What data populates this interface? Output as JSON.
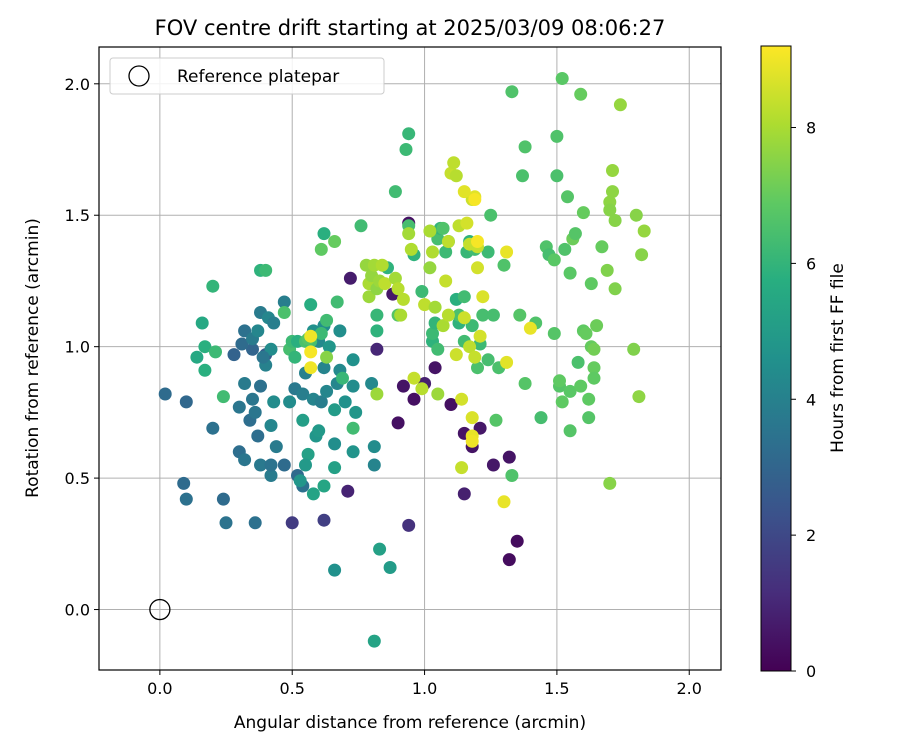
{
  "chart_data": {
    "type": "scatter",
    "title": "FOV centre drift starting at 2025/03/09 08:06:27",
    "xlabel": "Angular distance from reference (arcmin)",
    "ylabel": "Rotation from reference (arcmin)",
    "xlim": [
      -0.23,
      2.12
    ],
    "ylim": [
      -0.23,
      2.14
    ],
    "xticks": [
      0.0,
      0.5,
      1.0,
      1.5,
      2.0
    ],
    "yticks": [
      0.0,
      0.5,
      1.0,
      1.5,
      2.0
    ],
    "xtick_labels": [
      "0.0",
      "0.5",
      "1.0",
      "1.5",
      "2.0"
    ],
    "ytick_labels": [
      "0.0",
      "0.5",
      "1.0",
      "1.5",
      "2.0"
    ],
    "grid": true,
    "colormap": "viridis",
    "colorbar": {
      "label": "Hours from first FF file",
      "range": [
        0,
        9.2
      ],
      "ticks": [
        0,
        2,
        4,
        6,
        8
      ],
      "tick_labels": [
        "0",
        "2",
        "4",
        "6",
        "8"
      ]
    },
    "legend": {
      "position": "upper-left",
      "entries": [
        "Reference platepar"
      ]
    },
    "reference_point": {
      "x": 0.0,
      "y": 0.0
    },
    "points": [
      [
        0.88,
        1.2,
        0.6
      ],
      [
        0.94,
        1.47,
        0.4
      ],
      [
        1.04,
        0.92,
        0.5
      ],
      [
        0.92,
        0.85,
        0.5
      ],
      [
        0.96,
        0.8,
        0.4
      ],
      [
        0.9,
        0.71,
        0.4
      ],
      [
        1.1,
        0.78,
        0.4
      ],
      [
        1.15,
        0.67,
        0.5
      ],
      [
        1.18,
        0.62,
        0.5
      ],
      [
        1.26,
        0.55,
        0.6
      ],
      [
        1.21,
        0.69,
        0.6
      ],
      [
        1.32,
        0.58,
        0.5
      ],
      [
        1.32,
        0.19,
        0.3
      ],
      [
        1.35,
        0.26,
        0.3
      ],
      [
        1.15,
        0.44,
        0.8
      ],
      [
        0.72,
        1.26,
        0.7
      ],
      [
        0.71,
        0.45,
        0.9
      ],
      [
        0.82,
        0.99,
        1.0
      ],
      [
        1.0,
        0.86,
        0.8
      ],
      [
        0.94,
        0.32,
        1.3
      ],
      [
        0.5,
        0.33,
        1.6
      ],
      [
        0.62,
        0.34,
        1.7
      ],
      [
        0.4,
        0.97,
        2.7
      ],
      [
        0.28,
        0.97,
        2.9
      ],
      [
        0.35,
        0.99,
        3.0
      ],
      [
        0.02,
        0.82,
        3.2
      ],
      [
        0.1,
        0.79,
        3.1
      ],
      [
        0.09,
        0.48,
        3.2
      ],
      [
        0.1,
        0.42,
        3.4
      ],
      [
        0.24,
        0.42,
        3.2
      ],
      [
        0.25,
        0.33,
        3.5
      ],
      [
        0.36,
        0.33,
        3.4
      ],
      [
        0.2,
        0.69,
        3.4
      ],
      [
        0.3,
        0.6,
        3.3
      ],
      [
        0.32,
        0.57,
        3.6
      ],
      [
        0.34,
        0.72,
        3.3
      ],
      [
        0.36,
        0.75,
        3.6
      ],
      [
        0.37,
        0.66,
        3.3
      ],
      [
        0.38,
        0.55,
        3.7
      ],
      [
        0.42,
        0.51,
        3.8
      ],
      [
        0.42,
        0.55,
        3.5
      ],
      [
        0.44,
        0.62,
        3.8
      ],
      [
        0.47,
        0.55,
        3.2
      ],
      [
        0.52,
        0.51,
        3.2
      ],
      [
        0.54,
        0.47,
        3.4
      ],
      [
        0.31,
        1.01,
        3.2
      ],
      [
        0.32,
        1.06,
        3.4
      ],
      [
        0.3,
        0.77,
        3.6
      ],
      [
        0.32,
        0.86,
        3.8
      ],
      [
        0.35,
        0.8,
        3.6
      ],
      [
        0.38,
        0.85,
        3.4
      ],
      [
        0.35,
        1.03,
        3.8
      ],
      [
        0.37,
        1.06,
        4.2
      ],
      [
        0.38,
        1.13,
        3.8
      ],
      [
        0.41,
        1.11,
        4.2
      ],
      [
        0.43,
        1.09,
        3.9
      ],
      [
        0.47,
        1.17,
        3.9
      ],
      [
        0.42,
        0.99,
        4.4
      ],
      [
        0.4,
        0.93,
        4.0
      ],
      [
        0.39,
        0.96,
        3.6
      ],
      [
        0.42,
        0.7,
        4.2
      ],
      [
        0.43,
        0.79,
        4.4
      ],
      [
        0.49,
        0.79,
        4.4
      ],
      [
        0.51,
        0.84,
        3.7
      ],
      [
        0.54,
        0.82,
        3.9
      ],
      [
        0.55,
        0.9,
        4.0
      ],
      [
        0.58,
        0.8,
        4.1
      ],
      [
        0.61,
        0.79,
        3.9
      ],
      [
        0.62,
        0.92,
        4.1
      ],
      [
        0.63,
        0.83,
        4.2
      ],
      [
        0.67,
        0.86,
        4.2
      ],
      [
        0.68,
        0.91,
        4.3
      ],
      [
        0.6,
        1.02,
        4.3
      ],
      [
        0.62,
        1.08,
        4.5
      ],
      [
        0.58,
        1.06,
        4.6
      ],
      [
        0.64,
        1.0,
        4.8
      ],
      [
        0.68,
        1.06,
        4.5
      ],
      [
        0.7,
        0.79,
        4.6
      ],
      [
        0.73,
        0.85,
        4.4
      ],
      [
        0.73,
        0.95,
        4.6
      ],
      [
        0.74,
        0.75,
        4.8
      ],
      [
        0.8,
        0.86,
        4.3
      ],
      [
        0.81,
        0.62,
        4.4
      ],
      [
        0.81,
        0.55,
        4.1
      ],
      [
        0.73,
        0.6,
        4.7
      ],
      [
        0.66,
        0.63,
        4.5
      ],
      [
        0.59,
        0.66,
        4.8
      ],
      [
        0.56,
        0.59,
        5.2
      ],
      [
        0.55,
        0.55,
        4.9
      ],
      [
        0.53,
        0.49,
        4.8
      ],
      [
        0.58,
        0.44,
        5.3
      ],
      [
        0.62,
        0.47,
        5.4
      ],
      [
        0.66,
        0.54,
        5.2
      ],
      [
        0.54,
        0.72,
        5.1
      ],
      [
        0.6,
        0.68,
        4.9
      ],
      [
        0.66,
        0.76,
        5.0
      ],
      [
        0.66,
        0.15,
        4.6
      ],
      [
        0.81,
        -0.12,
        5.3
      ],
      [
        0.83,
        0.23,
        5.2
      ],
      [
        0.87,
        0.16,
        5.0
      ],
      [
        0.14,
        0.96,
        5.5
      ],
      [
        0.16,
        1.09,
        5.5
      ],
      [
        0.17,
        1.0,
        5.8
      ],
      [
        0.17,
        0.91,
        5.8
      ],
      [
        0.21,
        0.98,
        6.2
      ],
      [
        0.2,
        1.23,
        6.0
      ],
      [
        0.24,
        0.81,
        6.3
      ],
      [
        0.38,
        1.29,
        5.9
      ],
      [
        0.4,
        1.29,
        6.2
      ],
      [
        0.47,
        1.13,
        6.5
      ],
      [
        0.49,
        0.99,
        6.4
      ],
      [
        0.5,
        1.02,
        6.2
      ],
      [
        0.51,
        0.96,
        6.0
      ],
      [
        0.52,
        1.02,
        5.8
      ],
      [
        0.55,
        1.02,
        6.5
      ],
      [
        0.57,
        1.02,
        6.4
      ],
      [
        0.57,
        1.16,
        5.7
      ],
      [
        0.61,
        1.05,
        6.2
      ],
      [
        0.63,
        1.1,
        6.3
      ],
      [
        0.67,
        1.17,
        6.3
      ],
      [
        0.69,
        0.88,
        6.1
      ],
      [
        0.73,
        0.69,
        6.3
      ],
      [
        0.56,
        1.03,
        6.7
      ],
      [
        0.61,
        1.37,
        6.9
      ],
      [
        0.62,
        1.43,
        5.8
      ],
      [
        0.66,
        1.4,
        7.0
      ],
      [
        0.76,
        1.46,
        6.3
      ],
      [
        0.82,
        1.12,
        6.1
      ],
      [
        0.82,
        1.06,
        5.9
      ],
      [
        0.86,
        1.3,
        5.9
      ],
      [
        0.89,
        1.59,
        6.3
      ],
      [
        0.9,
        1.12,
        6.7
      ],
      [
        0.93,
        1.75,
        6.2
      ],
      [
        0.94,
        1.81,
        6.1
      ],
      [
        0.94,
        1.46,
        6.4
      ],
      [
        0.96,
        1.35,
        5.9
      ],
      [
        0.99,
        1.21,
        6.2
      ],
      [
        1.03,
        1.02,
        5.9
      ],
      [
        1.03,
        1.05,
        6.2
      ],
      [
        1.04,
        1.09,
        6.0
      ],
      [
        1.05,
        0.99,
        6.3
      ],
      [
        1.05,
        1.41,
        6.4
      ],
      [
        1.06,
        1.45,
        6.0
      ],
      [
        1.07,
        1.45,
        6.6
      ],
      [
        1.08,
        1.36,
        6.2
      ],
      [
        1.09,
        1.4,
        5.9
      ],
      [
        1.12,
        1.18,
        5.8
      ],
      [
        1.13,
        1.09,
        5.9
      ],
      [
        1.13,
        1.12,
        6.5
      ],
      [
        1.15,
        1.02,
        6.3
      ],
      [
        1.15,
        1.19,
        6.3
      ],
      [
        1.16,
        1.36,
        6.1
      ],
      [
        1.17,
        1.4,
        5.9
      ],
      [
        1.18,
        1.08,
        6.2
      ],
      [
        1.19,
        1.37,
        6.3
      ],
      [
        1.2,
        0.92,
        6.5
      ],
      [
        1.21,
        1.01,
        6.2
      ],
      [
        1.22,
        1.12,
        6.4
      ],
      [
        1.24,
        0.95,
        6.4
      ],
      [
        1.24,
        1.36,
        6.2
      ],
      [
        1.25,
        1.5,
        6.5
      ],
      [
        1.26,
        1.12,
        6.4
      ],
      [
        1.27,
        0.72,
        6.7
      ],
      [
        1.28,
        0.92,
        6.5
      ],
      [
        1.3,
        1.31,
        6.6
      ],
      [
        1.33,
        1.97,
        6.6
      ],
      [
        1.33,
        0.51,
        6.6
      ],
      [
        1.36,
        1.12,
        6.7
      ],
      [
        1.37,
        1.65,
        6.5
      ],
      [
        1.38,
        1.76,
        6.6
      ],
      [
        1.38,
        0.86,
        6.7
      ],
      [
        1.42,
        1.09,
        6.6
      ],
      [
        1.44,
        0.73,
        6.4
      ],
      [
        1.46,
        1.38,
        6.6
      ],
      [
        1.47,
        1.35,
        6.4
      ],
      [
        1.49,
        1.33,
        6.8
      ],
      [
        1.49,
        1.05,
        6.7
      ],
      [
        1.5,
        1.8,
        6.6
      ],
      [
        1.5,
        1.65,
        6.5
      ],
      [
        1.51,
        0.85,
        6.7
      ],
      [
        1.51,
        0.87,
        6.9
      ],
      [
        1.52,
        2.02,
        6.8
      ],
      [
        1.52,
        0.79,
        6.9
      ],
      [
        1.53,
        1.37,
        6.6
      ],
      [
        1.54,
        1.57,
        6.7
      ],
      [
        1.55,
        1.28,
        6.8
      ],
      [
        1.55,
        0.83,
        6.8
      ],
      [
        1.55,
        0.68,
        6.7
      ],
      [
        1.56,
        1.41,
        7.1
      ],
      [
        1.57,
        1.43,
        6.7
      ],
      [
        1.58,
        0.94,
        6.5
      ],
      [
        1.59,
        1.96,
        7.0
      ],
      [
        1.59,
        0.85,
        6.9
      ],
      [
        1.6,
        1.06,
        6.9
      ],
      [
        1.6,
        1.51,
        7.0
      ],
      [
        1.61,
        1.05,
        7.0
      ],
      [
        1.62,
        0.73,
        6.7
      ],
      [
        1.62,
        0.8,
        6.9
      ],
      [
        1.63,
        1.24,
        6.9
      ],
      [
        1.63,
        1.0,
        7.0
      ],
      [
        1.64,
        0.99,
        7.2
      ],
      [
        1.64,
        0.92,
        7.0
      ],
      [
        1.64,
        0.88,
        6.9
      ],
      [
        1.65,
        1.08,
        7.1
      ],
      [
        1.67,
        1.38,
        7.0
      ],
      [
        1.69,
        1.29,
        7.4
      ],
      [
        1.7,
        1.55,
        7.6
      ],
      [
        1.7,
        1.52,
        7.5
      ],
      [
        1.7,
        0.48,
        7.5
      ],
      [
        1.71,
        1.67,
        7.7
      ],
      [
        1.71,
        1.59,
        7.6
      ],
      [
        1.72,
        1.48,
        7.5
      ],
      [
        1.72,
        1.22,
        7.4
      ],
      [
        1.74,
        1.92,
        7.7
      ],
      [
        1.79,
        0.99,
        7.4
      ],
      [
        1.8,
        1.5,
        7.5
      ],
      [
        1.81,
        0.81,
        7.6
      ],
      [
        1.82,
        1.35,
        7.5
      ],
      [
        1.83,
        1.44,
        7.7
      ],
      [
        0.63,
        0.96,
        7.5
      ],
      [
        0.82,
        0.82,
        7.8
      ],
      [
        0.78,
        1.31,
        7.7
      ],
      [
        0.79,
        1.24,
        8.0
      ],
      [
        0.79,
        1.19,
        7.8
      ],
      [
        0.8,
        1.27,
        7.7
      ],
      [
        0.81,
        1.31,
        7.9
      ],
      [
        0.82,
        1.22,
        7.6
      ],
      [
        0.83,
        1.25,
        7.8
      ],
      [
        0.84,
        1.31,
        8.1
      ],
      [
        0.85,
        1.24,
        8.3
      ],
      [
        0.89,
        1.26,
        7.9
      ],
      [
        0.9,
        1.22,
        8.2
      ],
      [
        0.91,
        1.12,
        8.0
      ],
      [
        0.92,
        1.18,
        8.2
      ],
      [
        0.94,
        1.43,
        7.9
      ],
      [
        0.95,
        1.37,
        8.1
      ],
      [
        0.96,
        0.88,
        8.4
      ],
      [
        0.99,
        0.84,
        8.2
      ],
      [
        1.0,
        1.16,
        8.3
      ],
      [
        1.02,
        1.3,
        7.7
      ],
      [
        1.02,
        1.44,
        8.0
      ],
      [
        1.03,
        1.36,
        8.1
      ],
      [
        1.04,
        1.15,
        7.9
      ],
      [
        1.05,
        0.82,
        7.8
      ],
      [
        1.07,
        1.08,
        8.0
      ],
      [
        1.08,
        1.25,
        8.4
      ],
      [
        1.09,
        1.12,
        8.2
      ],
      [
        1.09,
        1.4,
        8.3
      ],
      [
        1.1,
        1.66,
        8.4
      ],
      [
        1.11,
        1.7,
        8.3
      ],
      [
        1.12,
        1.65,
        8.2
      ],
      [
        1.12,
        0.97,
        8.5
      ],
      [
        1.13,
        1.46,
        8.3
      ],
      [
        1.14,
        0.8,
        8.6
      ],
      [
        1.14,
        0.54,
        8.4
      ],
      [
        1.15,
        1.11,
        8.5
      ],
      [
        1.16,
        1.47,
        8.6
      ],
      [
        1.17,
        1.39,
        8.4
      ],
      [
        1.17,
        1.0,
        8.3
      ],
      [
        1.18,
        1.56,
        8.5
      ],
      [
        1.18,
        0.73,
        8.7
      ],
      [
        1.19,
        1.57,
        8.8
      ],
      [
        1.2,
        1.3,
        8.6
      ],
      [
        1.2,
        1.38,
        8.4
      ],
      [
        1.21,
        1.04,
        8.6
      ],
      [
        1.22,
        1.19,
        8.7
      ],
      [
        1.15,
        1.59,
        8.8
      ],
      [
        1.19,
        0.96,
        8.4
      ],
      [
        1.31,
        0.94,
        8.8
      ],
      [
        1.31,
        1.36,
        8.9
      ],
      [
        1.3,
        0.41,
        8.9
      ],
      [
        1.4,
        1.07,
        8.9
      ],
      [
        1.18,
        0.66,
        8.9
      ],
      [
        0.57,
        1.04,
        9.0
      ],
      [
        0.57,
        0.98,
        9.1
      ],
      [
        0.57,
        0.92,
        9.0
      ],
      [
        1.18,
        0.64,
        9.0
      ],
      [
        1.19,
        1.56,
        9.1
      ],
      [
        1.2,
        1.4,
        9.1
      ]
    ]
  }
}
